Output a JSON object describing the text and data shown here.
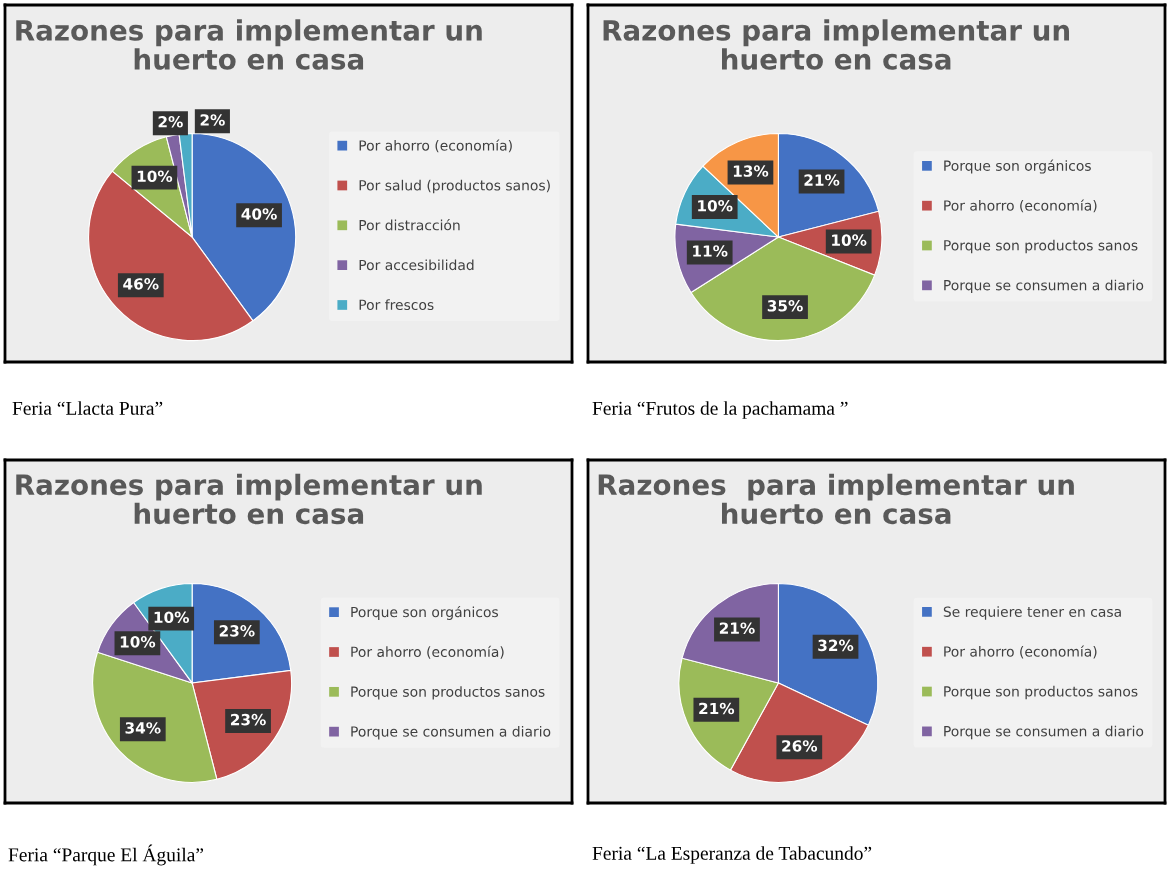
{
  "chart_data": [
    {
      "type": "pie",
      "title": "Razones para implementar un huerto en casa",
      "categories": [
        "Por ahorro (economía)",
        "Por salud (productos sanos)",
        "Por distracción",
        "Por accesibilidad",
        "Por frescos"
      ],
      "values": [
        40,
        46,
        10,
        2,
        2
      ],
      "colors": [
        "#4472c4",
        "#c0504d",
        "#9bbb59",
        "#8064a2",
        "#4bacc6"
      ],
      "value_labels": [
        "40%",
        "46%",
        "10%",
        "2%",
        "2%"
      ],
      "legend": "right",
      "annotations": [
        "Feria “Llacta Pura”"
      ]
    },
    {
      "type": "pie",
      "title": "Razones para implementar un huerto en casa",
      "categories": [
        "Porque son orgánicos",
        "Por ahorro (economía)",
        "Porque son productos sanos",
        "Porque se consumen a diario",
        null,
        null
      ],
      "values": [
        21,
        10,
        35,
        11,
        10,
        13
      ],
      "colors": [
        "#4472c4",
        "#c0504d",
        "#9bbb59",
        "#8064a2",
        "#4bacc6",
        "#f79646"
      ],
      "value_labels": [
        "21%",
        "10%",
        "35%",
        "11%",
        "10%",
        "13%"
      ],
      "legend": "right",
      "annotations": [
        "Feria “Frutos de la pachamama ”"
      ]
    },
    {
      "type": "pie",
      "title": "Razones para implementar un huerto en casa",
      "categories": [
        "Porque son orgánicos",
        "Por ahorro (economía)",
        "Porque son productos sanos",
        "Porque se consumen a diario",
        null
      ],
      "values": [
        23,
        23,
        34,
        10,
        10
      ],
      "colors": [
        "#4472c4",
        "#c0504d",
        "#9bbb59",
        "#8064a2",
        "#4bacc6"
      ],
      "value_labels": [
        "23%",
        "23%",
        "34%",
        "10%",
        "10%"
      ],
      "legend": "right",
      "annotations": [
        "Feria “Parque El Águila”"
      ]
    },
    {
      "type": "pie",
      "title": "Razones  para implementar un huerto en casa",
      "categories": [
        "Se requiere tener en casa",
        "Por ahorro (economía)",
        "Porque son productos sanos",
        "Porque se consumen a diario"
      ],
      "values": [
        32,
        26,
        21,
        21
      ],
      "colors": [
        "#4472c4",
        "#c0504d",
        "#9bbb59",
        "#8064a2"
      ],
      "value_labels": [
        "32%",
        "26%",
        "21%",
        "21%"
      ],
      "legend": "right",
      "annotations": [
        "Feria “La Esperanza de Tabacundo”"
      ]
    }
  ]
}
